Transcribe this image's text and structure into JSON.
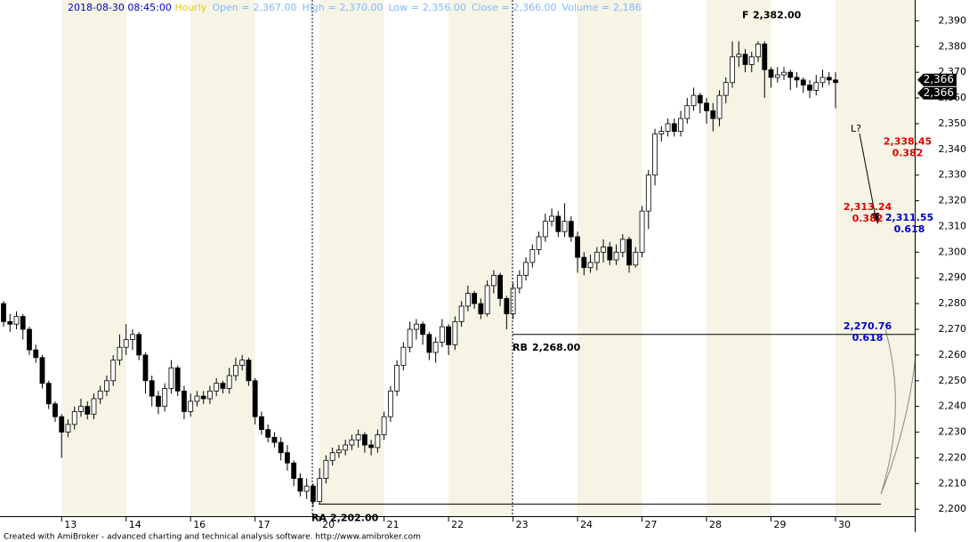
{
  "chart_data": {
    "type": "candlestick",
    "header": {
      "date": "2018-08-30 08:45:00",
      "interval": "Hourly",
      "fields": [
        {
          "name": "Open =",
          "value": 2367,
          "label": "2,367.00"
        },
        {
          "name": "High =",
          "value": 2370,
          "label": "2,370.00"
        },
        {
          "name": "Low =",
          "value": 2356,
          "label": "2,356.00"
        },
        {
          "name": "Close =",
          "value": 2366,
          "label": "2,366.00"
        },
        {
          "name": "Volume =",
          "value": 2186,
          "label": "2,186"
        }
      ]
    },
    "footer": "Created with AmiBroker - advanced charting and technical analysis software. http://www.amibroker.com",
    "categories": [
      null,
      null,
      null,
      null,
      null,
      null,
      null,
      null,
      null,
      "13",
      null,
      null,
      null,
      null,
      null,
      null,
      null,
      null,
      null,
      "14",
      null,
      null,
      null,
      null,
      null,
      null,
      null,
      null,
      null,
      "16",
      null,
      null,
      null,
      null,
      null,
      null,
      null,
      null,
      null,
      "17",
      null,
      null,
      null,
      null,
      null,
      null,
      null,
      null,
      null,
      "20",
      null,
      null,
      null,
      null,
      null,
      null,
      null,
      null,
      null,
      "21",
      null,
      null,
      null,
      null,
      null,
      null,
      null,
      null,
      null,
      "22",
      null,
      null,
      null,
      null,
      null,
      null,
      null,
      null,
      null,
      "23",
      null,
      null,
      null,
      null,
      null,
      null,
      null,
      null,
      null,
      "24",
      null,
      null,
      null,
      null,
      null,
      null,
      null,
      null,
      null,
      "27",
      null,
      null,
      null,
      null,
      null,
      null,
      null,
      null,
      null,
      "28",
      null,
      null,
      null,
      null,
      null,
      null,
      null,
      null,
      null,
      "29",
      null,
      null,
      null,
      null,
      null,
      null,
      null,
      null,
      null,
      "30"
    ],
    "open": [
      2280,
      2273,
      2272,
      2275,
      2270,
      2262,
      2259,
      2249,
      2241,
      2236,
      2230,
      2233,
      2238,
      2240,
      2237,
      2243,
      2246,
      2250,
      2258,
      2263,
      2266,
      2268,
      2260,
      2250,
      2244,
      2240,
      2247,
      2255,
      2246,
      2238,
      2242,
      2244,
      2243,
      2246,
      2249,
      2247,
      2252,
      2256,
      2258,
      2250,
      2236,
      2231,
      2228,
      2226,
      2222,
      2218,
      2212,
      2207,
      2209,
      2203,
      2212,
      2219,
      2222,
      2223,
      2225,
      2227,
      2229,
      2225,
      2224,
      2229,
      2236,
      2246,
      2256,
      2263,
      2270,
      2272,
      2268,
      2261,
      2265,
      2271,
      2264,
      2273,
      2279,
      2284,
      2280,
      2276,
      2287,
      2291,
      2282,
      2276,
      2286,
      2291,
      2296,
      2301,
      2306,
      2312,
      2314,
      2308,
      2312,
      2306,
      2298,
      2294,
      2296,
      2300,
      2302,
      2297,
      2300,
      2305,
      2295,
      2300,
      2316,
      2330,
      2346,
      2347,
      2350,
      2347,
      2352,
      2357,
      2361,
      2358,
      2355,
      2352,
      2361,
      2366,
      2376,
      2377,
      2373,
      2376,
      2381,
      2371,
      2368,
      2369,
      2370,
      2368,
      2367,
      2365,
      2363,
      2366,
      2368,
      2367
    ],
    "high": [
      2281,
      2276,
      2277,
      2276,
      2271,
      2264,
      2260,
      2250,
      2242,
      2237,
      2235,
      2240,
      2243,
      2242,
      2245,
      2248,
      2252,
      2260,
      2268,
      2272,
      2270,
      2269,
      2261,
      2252,
      2246,
      2249,
      2258,
      2256,
      2248,
      2245,
      2246,
      2246,
      2248,
      2251,
      2250,
      2255,
      2259,
      2260,
      2259,
      2251,
      2238,
      2233,
      2230,
      2228,
      2225,
      2219,
      2214,
      2212,
      2210,
      2216,
      2221,
      2224,
      2225,
      2227,
      2229,
      2231,
      2230,
      2227,
      2231,
      2238,
      2248,
      2258,
      2265,
      2273,
      2274,
      2273,
      2269,
      2267,
      2274,
      2272,
      2275,
      2281,
      2287,
      2285,
      2282,
      2289,
      2293,
      2292,
      2283,
      2288,
      2293,
      2298,
      2303,
      2308,
      2315,
      2317,
      2316,
      2319,
      2314,
      2308,
      2300,
      2299,
      2302,
      2305,
      2304,
      2303,
      2307,
      2306,
      2302,
      2318,
      2332,
      2348,
      2349,
      2352,
      2352,
      2355,
      2360,
      2364,
      2362,
      2360,
      2358,
      2363,
      2368,
      2382,
      2382,
      2379,
      2378,
      2382,
      2382,
      2372,
      2372,
      2372,
      2371,
      2370,
      2368,
      2367,
      2369,
      2371,
      2370,
      2370
    ],
    "low": [
      2271,
      2269,
      2270,
      2266,
      2260,
      2257,
      2247,
      2239,
      2234,
      2220,
      2228,
      2231,
      2236,
      2235,
      2235,
      2241,
      2244,
      2248,
      2256,
      2260,
      2262,
      2258,
      2245,
      2240,
      2237,
      2238,
      2245,
      2244,
      2235,
      2236,
      2240,
      2241,
      2241,
      2244,
      2245,
      2245,
      2250,
      2254,
      2248,
      2233,
      2229,
      2226,
      2224,
      2219,
      2215,
      2209,
      2205,
      2204,
      2201,
      2202,
      2210,
      2217,
      2220,
      2221,
      2223,
      2224,
      2222,
      2221,
      2222,
      2227,
      2234,
      2244,
      2254,
      2261,
      2266,
      2264,
      2258,
      2257,
      2263,
      2260,
      2262,
      2271,
      2277,
      2278,
      2274,
      2275,
      2284,
      2279,
      2270,
      2274,
      2284,
      2289,
      2294,
      2299,
      2304,
      2310,
      2306,
      2306,
      2304,
      2292,
      2291,
      2292,
      2293,
      2296,
      2295,
      2295,
      2298,
      2292,
      2294,
      2298,
      2309,
      2326,
      2343,
      2345,
      2345,
      2345,
      2350,
      2355,
      2354,
      2350,
      2347,
      2349,
      2358,
      2364,
      2372,
      2370,
      2370,
      2374,
      2360,
      2364,
      2366,
      2367,
      2363,
      2364,
      2362,
      2360,
      2361,
      2364,
      2365,
      2356
    ],
    "close": [
      2273,
      2272,
      2275,
      2270,
      2262,
      2259,
      2249,
      2241,
      2236,
      2230,
      2233,
      2238,
      2240,
      2237,
      2243,
      2246,
      2250,
      2258,
      2263,
      2266,
      2268,
      2260,
      2250,
      2244,
      2240,
      2247,
      2255,
      2246,
      2238,
      2242,
      2244,
      2243,
      2246,
      2249,
      2247,
      2252,
      2256,
      2258,
      2250,
      2236,
      2231,
      2228,
      2226,
      2222,
      2218,
      2212,
      2207,
      2209,
      2203,
      2212,
      2219,
      2222,
      2223,
      2225,
      2227,
      2229,
      2225,
      2224,
      2229,
      2236,
      2246,
      2256,
      2263,
      2270,
      2272,
      2268,
      2261,
      2265,
      2271,
      2264,
      2273,
      2279,
      2284,
      2280,
      2276,
      2287,
      2291,
      2282,
      2276,
      2286,
      2291,
      2296,
      2301,
      2306,
      2312,
      2314,
      2308,
      2312,
      2306,
      2298,
      2294,
      2296,
      2300,
      2302,
      2297,
      2300,
      2305,
      2295,
      2300,
      2316,
      2330,
      2346,
      2347,
      2350,
      2347,
      2352,
      2357,
      2361,
      2358,
      2355,
      2352,
      2361,
      2366,
      2376,
      2377,
      2373,
      2376,
      2381,
      2371,
      2368,
      2369,
      2370,
      2368,
      2367,
      2365,
      2363,
      2366,
      2368,
      2367,
      2366
    ],
    "ylim": [
      2197.3,
      2398.1
    ],
    "yticks": [
      {
        "value": 2200,
        "label": "2,200"
      },
      {
        "value": 2210,
        "label": "2,210"
      },
      {
        "value": 2220,
        "label": "2,220"
      },
      {
        "value": 2230,
        "label": "2,230"
      },
      {
        "value": 2240,
        "label": "2,240"
      },
      {
        "value": 2250,
        "label": "2,250"
      },
      {
        "value": 2260,
        "label": "2,260"
      },
      {
        "value": 2270,
        "label": "2,270"
      },
      {
        "value": 2280,
        "label": "2,280"
      },
      {
        "value": 2290,
        "label": "2,290"
      },
      {
        "value": 2300,
        "label": "2,300"
      },
      {
        "value": 2310,
        "label": "2,310"
      },
      {
        "value": 2320,
        "label": "2,320"
      },
      {
        "value": 2330,
        "label": "2,330"
      },
      {
        "value": 2340,
        "label": "2,340"
      },
      {
        "value": 2350,
        "label": "2,350"
      },
      {
        "value": 2360,
        "label": "2,360"
      },
      {
        "value": 2370,
        "label": "2,370"
      },
      {
        "value": 2380,
        "label": "2,380"
      },
      {
        "value": 2390,
        "label": "2,390"
      }
    ],
    "last_price_labels": [
      {
        "value": 2366,
        "label": "2,366"
      },
      {
        "value": 2366,
        "label": "2,366"
      }
    ],
    "annotations": [
      {
        "text": "F",
        "value": 2382,
        "label": "2,382.00"
      },
      {
        "text": "RA",
        "value": 2202,
        "label": "2,202.00"
      },
      {
        "text": "RB",
        "value": 2268,
        "label": "2,268.00"
      },
      {
        "text": "L?"
      }
    ],
    "fib_levels": [
      {
        "value": 2338.45,
        "label": "2,338.45",
        "ratio": 0.382,
        "color": "#e00000"
      },
      {
        "value": 2313.24,
        "label": "2,313.24",
        "ratio": 0.382,
        "color": "#e00000"
      },
      {
        "value": 2311.55,
        "label": "2,311.55",
        "ratio": 0.618,
        "color": "#0000cc"
      },
      {
        "value": 2270.76,
        "label": "2,270.76",
        "ratio": 0.618,
        "color": "#0000cc"
      }
    ],
    "up_color": "#ffffff",
    "down_color": "#000000"
  }
}
